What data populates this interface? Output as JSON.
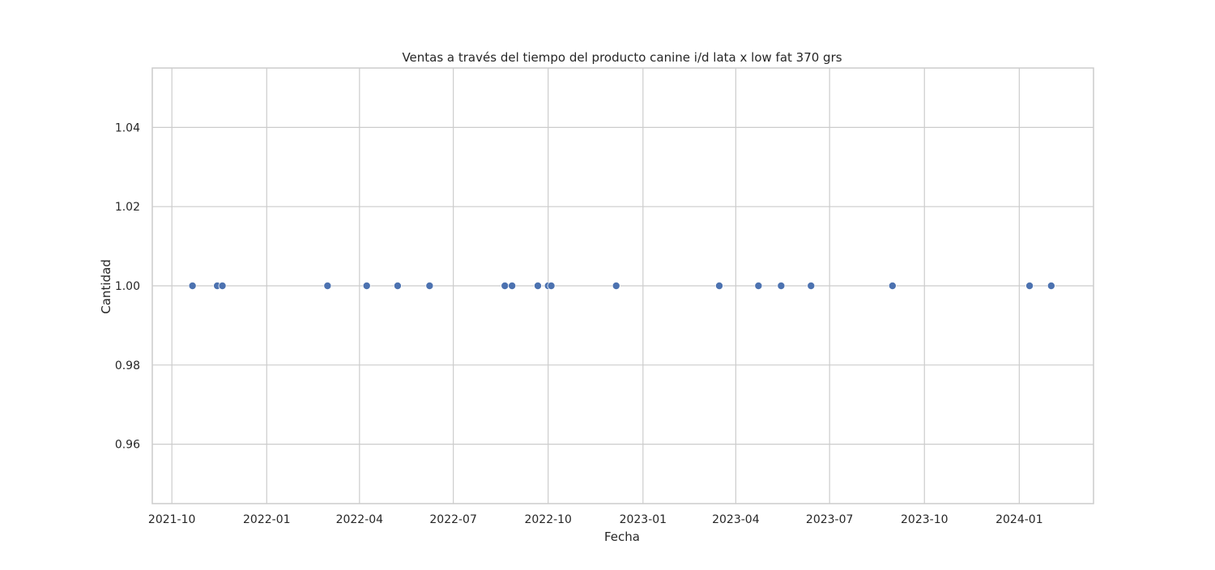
{
  "chart_data": {
    "type": "scatter",
    "title": "Ventas a través del tiempo del producto canine i/d lata x low fat 370 grs",
    "xlabel": "Fecha",
    "ylabel": "Cantidad",
    "x_type": "date",
    "xlim": [
      "2021-09-12",
      "2024-03-13"
    ],
    "ylim": [
      0.945,
      1.055
    ],
    "x_ticks": [
      "2021-10",
      "2022-01",
      "2022-04",
      "2022-07",
      "2022-10",
      "2023-01",
      "2023-04",
      "2023-07",
      "2023-10",
      "2024-01"
    ],
    "x_tick_dates": [
      "2021-10-01",
      "2022-01-01",
      "2022-04-01",
      "2022-07-01",
      "2022-10-01",
      "2023-01-01",
      "2023-04-01",
      "2023-07-01",
      "2023-10-01",
      "2024-01-01"
    ],
    "y_ticks": [
      "0.96",
      "0.98",
      "1.00",
      "1.02",
      "1.04"
    ],
    "y_tick_values": [
      0.96,
      0.98,
      1.0,
      1.02,
      1.04
    ],
    "grid": true,
    "marker_color": "#4c72b0",
    "points": [
      {
        "x": "2021-10-21",
        "y": 1
      },
      {
        "x": "2021-11-14",
        "y": 1
      },
      {
        "x": "2021-11-19",
        "y": 1
      },
      {
        "x": "2022-03-01",
        "y": 1
      },
      {
        "x": "2022-04-08",
        "y": 1
      },
      {
        "x": "2022-05-08",
        "y": 1
      },
      {
        "x": "2022-06-08",
        "y": 1
      },
      {
        "x": "2022-08-20",
        "y": 1
      },
      {
        "x": "2022-08-27",
        "y": 1
      },
      {
        "x": "2022-09-21",
        "y": 1
      },
      {
        "x": "2022-10-01",
        "y": 1
      },
      {
        "x": "2022-10-04",
        "y": 1
      },
      {
        "x": "2022-12-06",
        "y": 1
      },
      {
        "x": "2023-03-16",
        "y": 1
      },
      {
        "x": "2023-04-23",
        "y": 1
      },
      {
        "x": "2023-05-15",
        "y": 1
      },
      {
        "x": "2023-06-13",
        "y": 1
      },
      {
        "x": "2023-08-31",
        "y": 1
      },
      {
        "x": "2024-01-11",
        "y": 1
      },
      {
        "x": "2024-02-01",
        "y": 1
      }
    ]
  }
}
